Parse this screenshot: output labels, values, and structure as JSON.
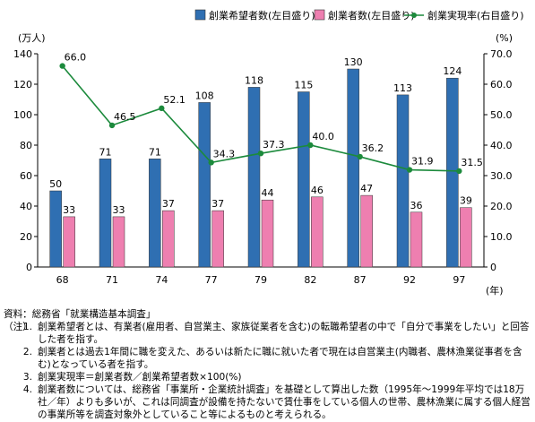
{
  "chart_data": {
    "type": "bar",
    "categories": [
      "68",
      "71",
      "74",
      "77",
      "79",
      "82",
      "87",
      "92",
      "97"
    ],
    "x_unit": "(年)",
    "series": [
      {
        "name": "創業希望者数(左目盛り)",
        "kind": "bar",
        "axis": "left",
        "color": "#2f6fb2",
        "values": [
          50,
          71,
          71,
          108,
          118,
          115,
          130,
          113,
          124
        ]
      },
      {
        "name": "創業者数(左目盛り)",
        "kind": "bar",
        "axis": "left",
        "color": "#ee7fb0",
        "values": [
          33,
          33,
          37,
          37,
          44,
          46,
          47,
          36,
          39
        ]
      },
      {
        "name": "創業実現率(右目盛り)",
        "kind": "line",
        "axis": "right",
        "color": "#1c8a3c",
        "values": [
          66.0,
          46.5,
          52.1,
          34.3,
          37.3,
          40.0,
          36.2,
          31.9,
          31.5
        ]
      }
    ],
    "left_axis": {
      "unit": "(万人)",
      "min": 0,
      "max": 140,
      "step": 20,
      "ticks": [
        "0",
        "20",
        "40",
        "60",
        "80",
        "100",
        "120",
        "140"
      ]
    },
    "right_axis": {
      "unit": "(%)",
      "min": 0,
      "max": 70,
      "step": 10,
      "ticks": [
        "0",
        "10.0",
        "20.0",
        "30.0",
        "40.0",
        "50.0",
        "60.0",
        "70.0"
      ]
    },
    "bar_labels": {
      "hope": [
        "50",
        "71",
        "71",
        "108",
        "118",
        "115",
        "130",
        "113",
        "124"
      ],
      "founders": [
        "33",
        "33",
        "37",
        "37",
        "44",
        "46",
        "47",
        "36",
        "39"
      ],
      "rate": [
        "66.0",
        "46.5",
        "52.1",
        "34.3",
        "37.3",
        "40.0",
        "36.2",
        "31.9",
        "31.5"
      ]
    },
    "legend_position": "top",
    "grid": false
  },
  "notes": {
    "source": "資料：総務省「就業構造基本調査」",
    "head": "（注）",
    "items": [
      {
        "num": "1.",
        "text": "創業希望者とは、有業者(雇用者、自営業主、家族従業者を含む)の転職希望者の中で「自分で事業をしたい」と回答した者を指す。"
      },
      {
        "num": "2.",
        "text": "創業者とは過去1年間に職を変えた、あるいは新たに職に就いた者で現在は自営業主(内職者、農林漁業従事者を含む)となっている者を指す。"
      },
      {
        "num": "3.",
        "text": "創業実現率＝創業者数／創業希望者数×100(%)"
      },
      {
        "num": "4.",
        "text": "創業者数については、総務省「事業所・企業統計調査」を基礎として算出した数（1995年～1999年平均では18万社／年）よりも多いが、これは同調査が設備を持たないで賃仕事をしている個人の世帯、農林漁業に属する個人経営の事業所等を調査対象外としていること等によるものと考えられる。"
      }
    ]
  }
}
